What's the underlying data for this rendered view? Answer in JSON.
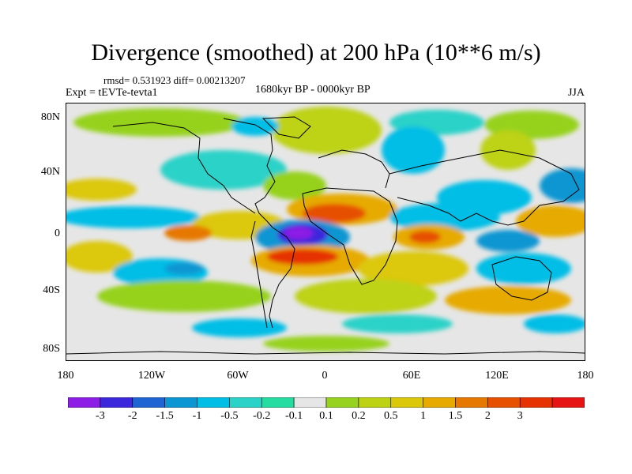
{
  "title": "Divergence (smoothed) at 200 hPa (10**6 m/s)",
  "stats": "rmsd= 0.531923  diff= 0.00213207",
  "experiment": "Expt = tEVTe-tevta1",
  "period": "1680kyr BP - 0000kyr BP",
  "season": "JJA",
  "y_axis_labels": [
    "80N",
    "40N",
    "0",
    "40S",
    "80S"
  ],
  "x_axis_labels": [
    "180",
    "120W",
    "60W",
    "0",
    "60E",
    "120E",
    "180"
  ],
  "colorbar": {
    "colors": [
      "#8c1ee6",
      "#3c28dc",
      "#1e64d2",
      "#0a96d2",
      "#00bee6",
      "#2ad2c8",
      "#26dca0",
      "#e6e6e6",
      "#96d21e",
      "#bed214",
      "#dcc80a",
      "#e6aa00",
      "#e67800",
      "#e65000",
      "#e63200",
      "#e61414"
    ],
    "labels": [
      "-3",
      "-2",
      "-1.5",
      "-1",
      "-0.5",
      "-0.2",
      "-0.1",
      "0.1",
      "0.2",
      "0.5",
      "1",
      "1.5",
      "2",
      "3"
    ]
  }
}
